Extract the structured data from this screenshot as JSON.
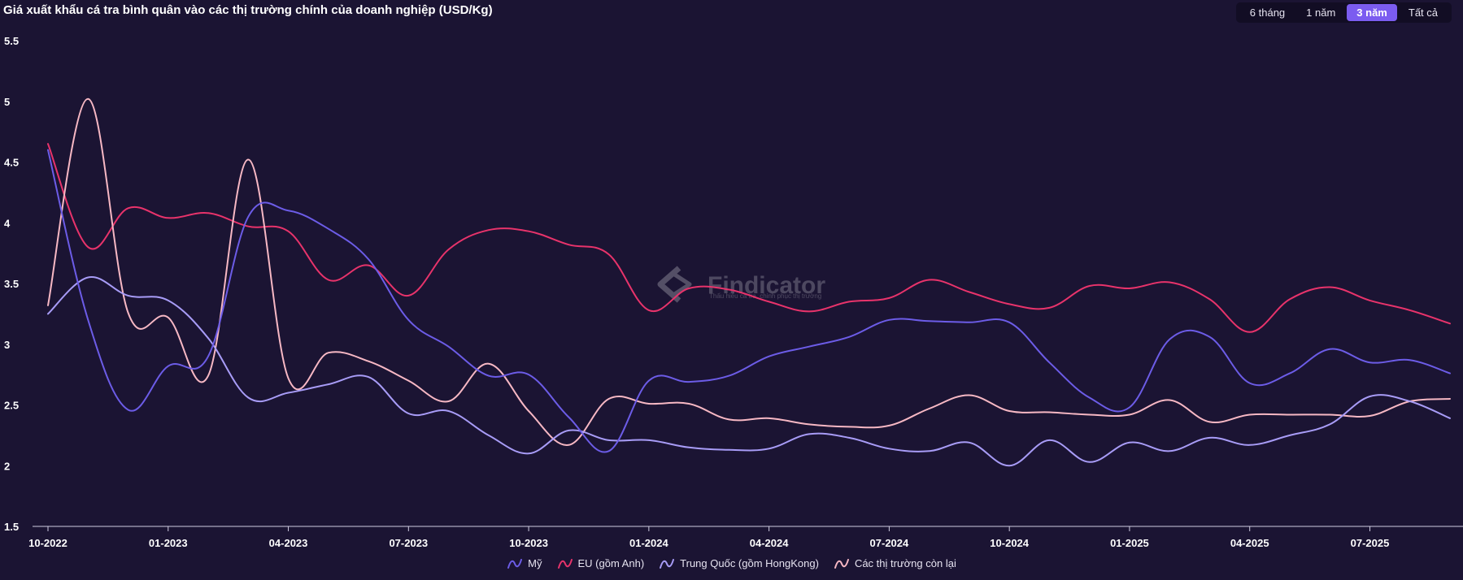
{
  "header": {
    "title": "Giá xuất khẩu cá tra bình quân vào các thị trường chính của doanh nghiệp (USD/Kg)"
  },
  "range_buttons": [
    {
      "label": "6 tháng",
      "active": false
    },
    {
      "label": "1 năm",
      "active": false
    },
    {
      "label": "3 năm",
      "active": true
    },
    {
      "label": "Tất cả",
      "active": false
    }
  ],
  "watermark": {
    "name": "Findicator",
    "tagline": "Thấu hiểu cá tra, chinh phục thị trường"
  },
  "chart_data": {
    "type": "line",
    "title": "Giá xuất khẩu cá tra bình quân vào các thị trường chính của doanh nghiệp (USD/Kg)",
    "x": [
      "10-2022",
      "11-2022",
      "12-2022",
      "01-2023",
      "02-2023",
      "03-2023",
      "04-2023",
      "05-2023",
      "06-2023",
      "07-2023",
      "08-2023",
      "09-2023",
      "10-2023",
      "11-2023",
      "12-2023",
      "01-2024",
      "02-2024",
      "03-2024",
      "04-2024",
      "05-2024",
      "06-2024",
      "07-2024",
      "08-2024",
      "09-2024",
      "10-2024",
      "11-2024",
      "12-2024",
      "01-2025",
      "02-2025",
      "03-2025",
      "04-2025",
      "05-2025",
      "06-2025",
      "07-2025",
      "08-2025",
      "09-2025"
    ],
    "x_tick_labels": [
      "10-2022",
      "01-2023",
      "04-2023",
      "07-2023",
      "10-2023",
      "01-2024",
      "04-2024",
      "07-2024",
      "10-2024",
      "01-2025",
      "04-2025",
      "07-2025"
    ],
    "y_ticks": [
      "1.5",
      "2",
      "2.5",
      "3",
      "3.5",
      "4",
      "4.5",
      "5",
      "5.5"
    ],
    "ylim": [
      1.5,
      5.5
    ],
    "grid": false,
    "legend_position": "bottom-center",
    "series": [
      {
        "name": "Mỹ",
        "color": "#6c5ce7",
        "values": [
          4.6,
          3.2,
          2.46,
          2.82,
          2.9,
          4.05,
          4.1,
          3.95,
          3.7,
          3.2,
          2.98,
          2.74,
          2.75,
          2.4,
          2.12,
          2.7,
          2.69,
          2.74,
          2.9,
          2.98,
          3.06,
          3.2,
          3.19,
          3.18,
          3.18,
          2.85,
          2.56,
          2.48,
          3.04,
          3.06,
          2.68,
          2.76,
          2.96,
          2.85,
          2.87,
          2.76
        ]
      },
      {
        "name": "EU (gồm Anh)",
        "color": "#e8336b",
        "values": [
          4.65,
          3.8,
          4.12,
          4.04,
          4.08,
          3.97,
          3.93,
          3.53,
          3.65,
          3.4,
          3.78,
          3.94,
          3.93,
          3.82,
          3.74,
          3.28,
          3.46,
          3.45,
          3.35,
          3.27,
          3.35,
          3.38,
          3.53,
          3.43,
          3.33,
          3.3,
          3.48,
          3.46,
          3.51,
          3.37,
          3.1,
          3.37,
          3.47,
          3.36,
          3.28,
          3.17
        ]
      },
      {
        "name": "Trung Quốc (gồm HongKong)",
        "color": "#a89cf7",
        "values": [
          3.25,
          3.55,
          3.4,
          3.36,
          3.05,
          2.56,
          2.6,
          2.67,
          2.73,
          2.43,
          2.45,
          2.25,
          2.1,
          2.29,
          2.21,
          2.21,
          2.15,
          2.13,
          2.14,
          2.26,
          2.23,
          2.14,
          2.12,
          2.19,
          2.0,
          2.21,
          2.03,
          2.19,
          2.12,
          2.23,
          2.17,
          2.25,
          2.34,
          2.57,
          2.53,
          2.39
        ]
      },
      {
        "name": "Các thị trường còn lại",
        "color": "#f7b8c4",
        "values": [
          3.32,
          5.02,
          3.26,
          3.22,
          2.74,
          4.52,
          2.72,
          2.93,
          2.86,
          2.7,
          2.53,
          2.84,
          2.45,
          2.17,
          2.55,
          2.51,
          2.51,
          2.38,
          2.39,
          2.34,
          2.32,
          2.33,
          2.47,
          2.58,
          2.45,
          2.44,
          2.42,
          2.42,
          2.54,
          2.36,
          2.42,
          2.42,
          2.42,
          2.41,
          2.53,
          2.55
        ]
      }
    ]
  }
}
